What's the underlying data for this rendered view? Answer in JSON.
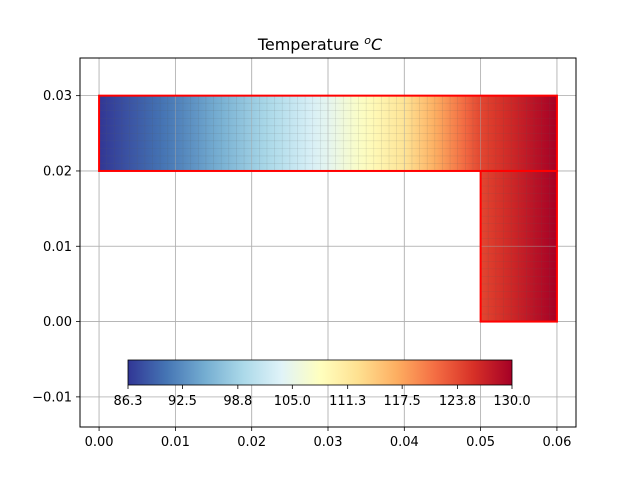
{
  "chart_data": {
    "type": "heatmap",
    "title": "Temperature",
    "title_unit_superscript": "o",
    "title_unit": "C",
    "xlabel": "",
    "ylabel": "",
    "xlim": [
      -0.0025,
      0.0625
    ],
    "ylim": [
      -0.014,
      0.035
    ],
    "x_ticks": [
      0.0,
      0.01,
      0.02,
      0.03,
      0.04,
      0.05,
      0.06
    ],
    "x_tick_labels": [
      "0.00",
      "0.01",
      "0.02",
      "0.03",
      "0.04",
      "0.05",
      "0.06"
    ],
    "y_ticks": [
      -0.01,
      0.0,
      0.01,
      0.02,
      0.03
    ],
    "y_tick_labels": [
      "−0.01",
      "0.00",
      "0.01",
      "0.02",
      "0.03"
    ],
    "grid": true,
    "colormap": "RdYlBu_r",
    "colormap_stops": [
      "#313695",
      "#4575b4",
      "#74add1",
      "#abd9e9",
      "#e0f3f8",
      "#ffffbf",
      "#fee090",
      "#fdae61",
      "#f46d43",
      "#d73027",
      "#a50026"
    ],
    "temperature_range": [
      86.3,
      130.0
    ],
    "regions": [
      {
        "name": "horizontal-bar",
        "x": [
          0.0,
          0.06
        ],
        "y": [
          0.02,
          0.03
        ]
      },
      {
        "name": "vertical-leg",
        "x": [
          0.05,
          0.06
        ],
        "y": [
          0.0,
          0.02
        ]
      }
    ],
    "temperature_profile_x": [
      0.0,
      0.01,
      0.02,
      0.03,
      0.04,
      0.05,
      0.06
    ],
    "temperature_profile_values": [
      86.3,
      91.5,
      98.0,
      104.5,
      112.0,
      124.0,
      130.0
    ],
    "outline_color": "#ff0000",
    "colorbar": {
      "orientation": "horizontal",
      "placement": "bottom inside axes",
      "tick_values": [
        86.3,
        92.5,
        98.8,
        105.0,
        111.3,
        117.5,
        123.8,
        130.0
      ],
      "tick_labels": [
        "86.3",
        "92.5",
        "98.8",
        "105.0",
        "111.3",
        "117.5",
        "123.8",
        "130.0"
      ]
    }
  }
}
